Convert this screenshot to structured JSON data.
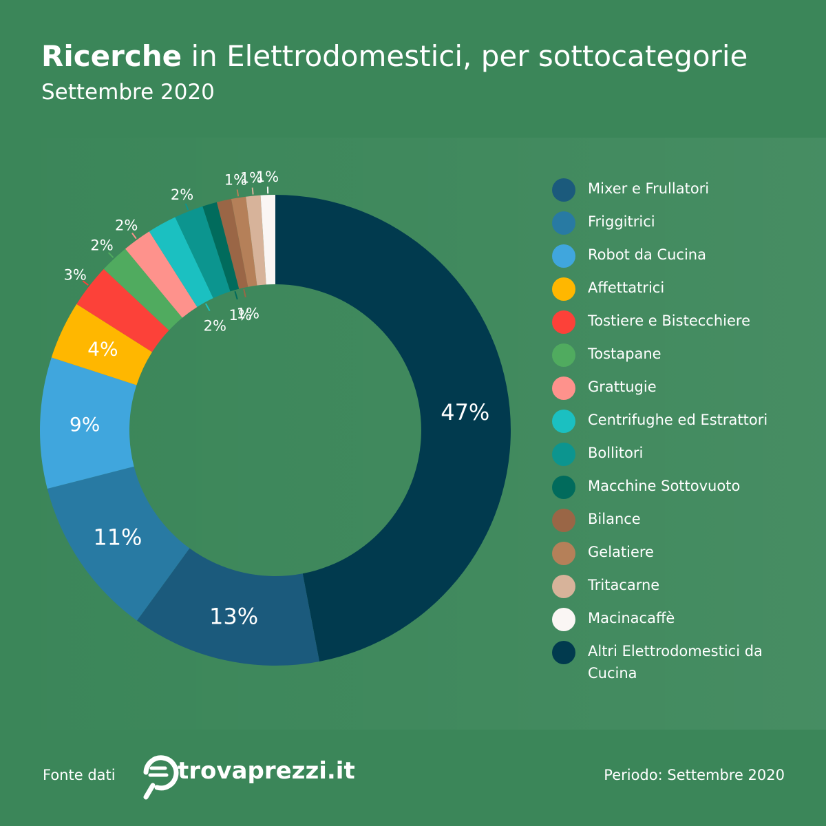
{
  "header": {
    "title_bold": "Ricerche",
    "title_rest": " in Elettrodomestici, per sottocategorie",
    "subtitle": "Settembre 2020"
  },
  "chart_data": {
    "type": "pie",
    "title": "Ricerche in Elettrodomestici, per sottocategorie",
    "subtitle": "Settembre 2020",
    "legend_position": "right",
    "categories": [
      "Altri Elettrodomestici da Cucina",
      "Mixer e Frullatori",
      "Friggitrici",
      "Robot da Cucina",
      "Affettatrici",
      "Tostiere e Bistecchiere",
      "Tostapane",
      "Grattugie",
      "Centrifughe ed Estrattori",
      "Bollitori",
      "Macchine Sottovuoto",
      "Bilance",
      "Gelatiere",
      "Tritacarne",
      "Macinacaffè"
    ],
    "values": [
      47,
      13,
      11,
      9,
      4,
      3,
      2,
      2,
      2,
      2,
      1,
      1,
      1,
      1,
      1
    ],
    "labels": [
      "47%",
      "13%",
      "11%",
      "9%",
      "4%",
      "3%",
      "2%",
      "2%",
      "2%",
      "2%",
      "1%",
      "1%",
      "1%",
      "1%",
      "1%"
    ],
    "colors": [
      "#013a4e",
      "#1b5a7c",
      "#287aa3",
      "#40a6dd",
      "#ffb700",
      "#fc4139",
      "#50ab5f",
      "#fe928c",
      "#1bc0c1",
      "#0c958f",
      "#016b5c",
      "#9a6646",
      "#b58059",
      "#d7b39a",
      "#faf6f4"
    ]
  },
  "legend": [
    {
      "label": "Mixer e Frullatori",
      "color": "#1b5a7c"
    },
    {
      "label": "Friggitrici",
      "color": "#287aa3"
    },
    {
      "label": "Robot da Cucina",
      "color": "#40a6dd"
    },
    {
      "label": "Affettatrici",
      "color": "#ffb700"
    },
    {
      "label": "Tostiere e Bistecchiere",
      "color": "#fc4139"
    },
    {
      "label": "Tostapane",
      "color": "#50ab5f"
    },
    {
      "label": "Grattugie",
      "color": "#fe928c"
    },
    {
      "label": "Centrifughe ed Estrattori",
      "color": "#1bc0c1"
    },
    {
      "label": "Bollitori",
      "color": "#0c958f"
    },
    {
      "label": "Macchine Sottovuoto",
      "color": "#016b5c"
    },
    {
      "label": "Bilance",
      "color": "#9a6646"
    },
    {
      "label": "Gelatiere",
      "color": "#b58059"
    },
    {
      "label": "Tritacarne",
      "color": "#d7b39a"
    },
    {
      "label": "Macinacaffè",
      "color": "#faf6f4"
    },
    {
      "label": "Altri Elettrodomestici da Cucina",
      "color": "#013a4e"
    }
  ],
  "footer": {
    "source_label": "Fonte dati",
    "brand": "trovaprezzi.it",
    "period": "Periodo: Settembre 2020"
  }
}
